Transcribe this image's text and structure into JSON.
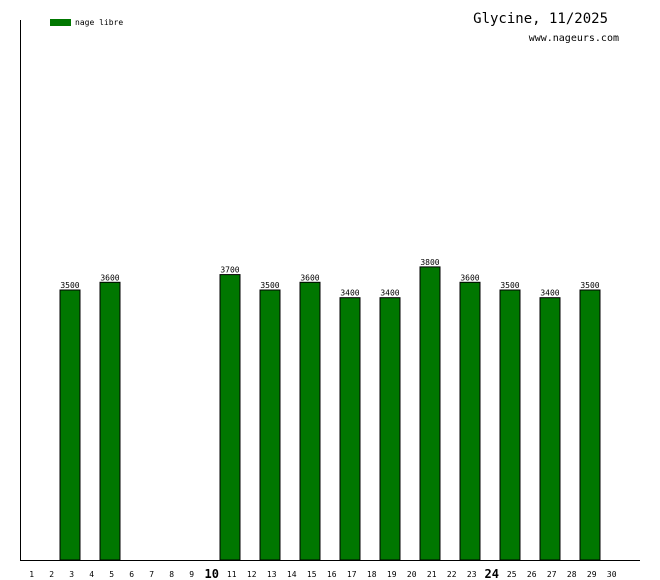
{
  "title": "Glycine, 11/2025",
  "site": "www.nageurs.com",
  "legend": {
    "label": "nage libre",
    "color": "#007700"
  },
  "chart_data": {
    "type": "bar",
    "title": "Glycine, 11/2025",
    "xlabel": "",
    "ylabel": "",
    "categories": [
      "1",
      "2",
      "3",
      "4",
      "5",
      "6",
      "7",
      "8",
      "9",
      "10",
      "11",
      "12",
      "13",
      "14",
      "15",
      "16",
      "17",
      "18",
      "19",
      "20",
      "21",
      "22",
      "23",
      "24",
      "25",
      "26",
      "27",
      "28",
      "29",
      "30"
    ],
    "major_ticks": [
      "10",
      "24"
    ],
    "series": [
      {
        "name": "nage libre",
        "color": "#007700",
        "values": [
          null,
          3500,
          null,
          3600,
          null,
          null,
          null,
          null,
          null,
          3700,
          null,
          3500,
          null,
          3600,
          null,
          3400,
          null,
          3400,
          null,
          3800,
          null,
          3600,
          null,
          3500,
          null,
          3400,
          null,
          3500,
          null,
          null
        ]
      }
    ],
    "ylim": [
      0,
      7000
    ],
    "grid": false,
    "legend_position": "top-left"
  }
}
